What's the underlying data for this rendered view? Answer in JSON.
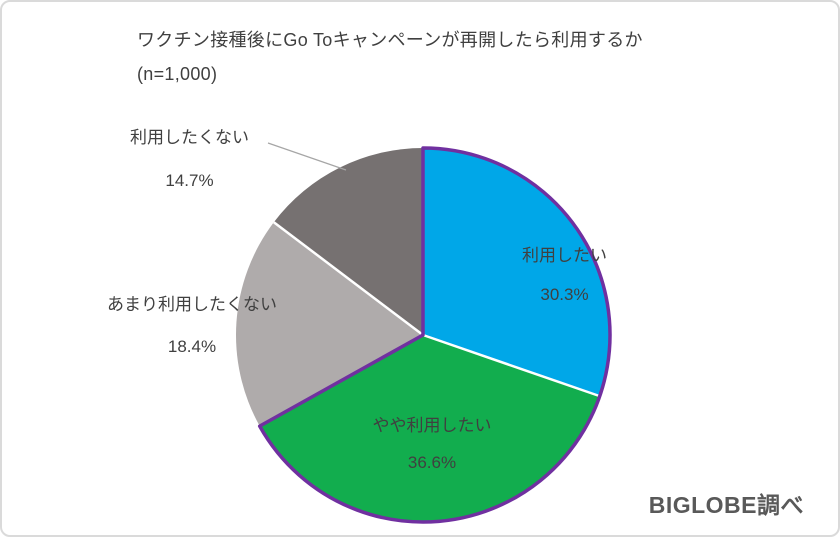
{
  "header": {
    "title_line1": "ワクチン接種後にGo Toキャンペーンが再開したら利用するか",
    "title_line2": "(n=1,000)"
  },
  "source_label": "BIGLOBE調べ",
  "chart_data": {
    "type": "pie",
    "title": "ワクチン接種後にGo Toキャンペーンが再開したら利用するか",
    "sample_size_label": "(n=1,000)",
    "start_angle_deg": 0,
    "direction": "clockwise",
    "legend": "none",
    "slices": [
      {
        "label": "利用したい",
        "value": 30.3,
        "display": "30.3%",
        "color": "#00a7e8",
        "label_placement": "inside",
        "outlined": true
      },
      {
        "label": "やや利用したい",
        "value": 36.6,
        "display": "36.6%",
        "color": "#12ad4e",
        "label_placement": "inside",
        "outlined": true
      },
      {
        "label": "あまり利用したくない",
        "value": 18.4,
        "display": "18.4%",
        "color": "#afabab",
        "label_placement": "outside",
        "outlined": false
      },
      {
        "label": "利用したくない",
        "value": 14.7,
        "display": "14.7%",
        "color": "#767171",
        "label_placement": "outside",
        "outlined": false
      }
    ],
    "outline_color": "#7030a0",
    "separator_color": "#ffffff"
  },
  "styles": {
    "text_color": "#404040",
    "title_color": "#3f3f3f",
    "source_color": "#595959",
    "leader_line_color": "#a6a6a6",
    "frame_border_color": "#dadada",
    "background": "#ffffff"
  }
}
